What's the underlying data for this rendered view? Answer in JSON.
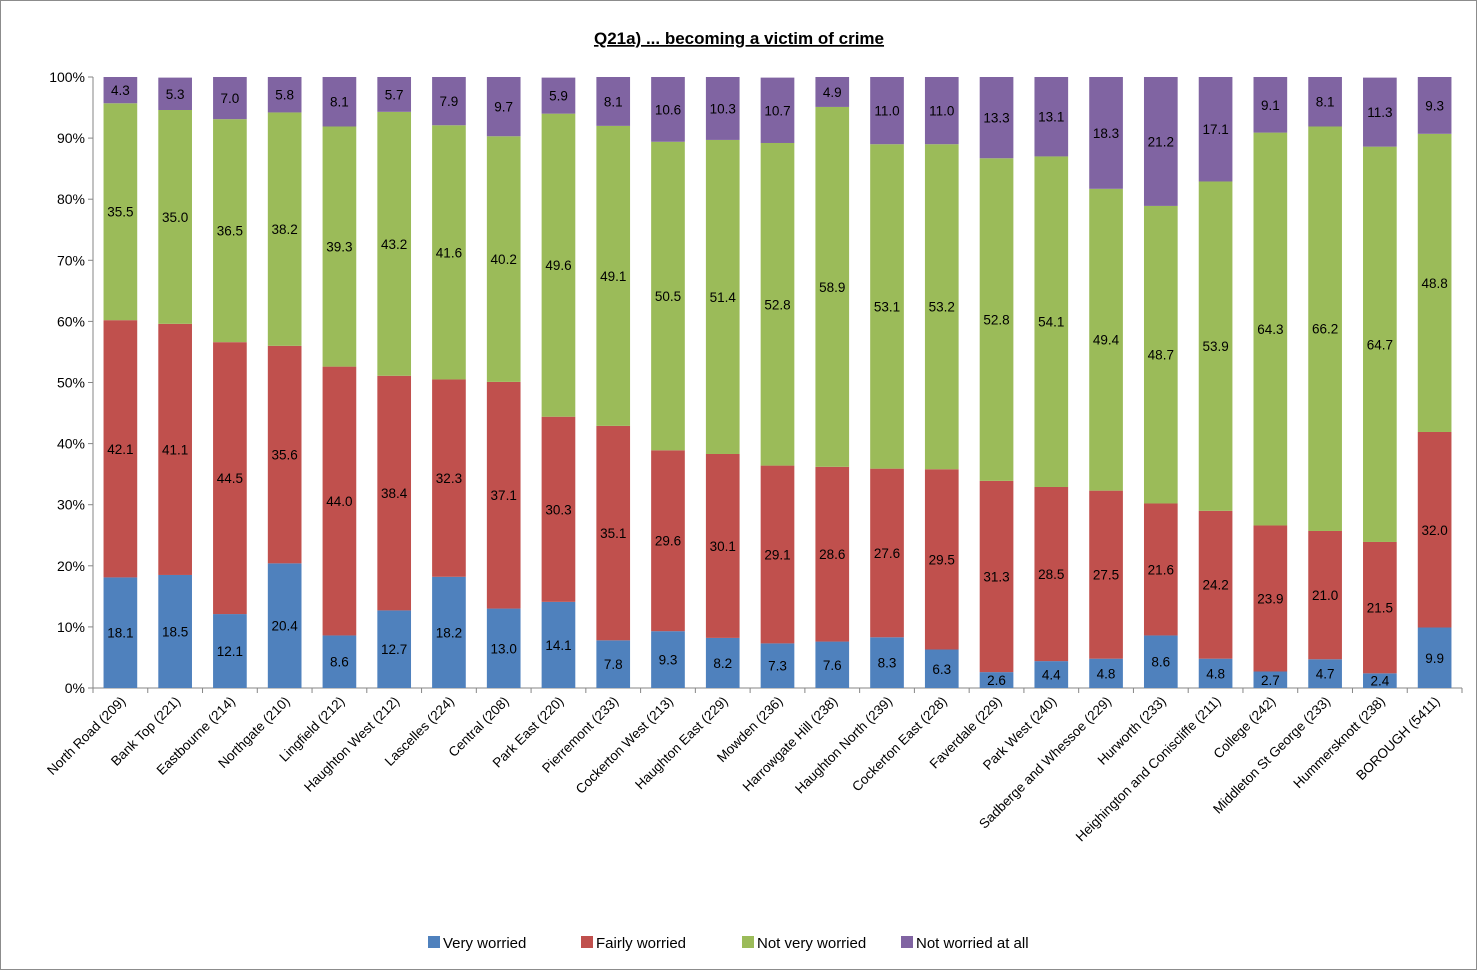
{
  "chart_data": {
    "type": "bar",
    "stacked": true,
    "percent": true,
    "title": "Q21a) ... becoming a victim of crime",
    "ylim": [
      0,
      100
    ],
    "yticks": [
      "0%",
      "10%",
      "20%",
      "30%",
      "40%",
      "50%",
      "60%",
      "70%",
      "80%",
      "90%",
      "100%"
    ],
    "legend_position": "bottom",
    "grid": false,
    "categories": [
      "North Road (209)",
      "Bank Top (221)",
      "Eastbourne (214)",
      "Northgate (210)",
      "Lingfield (212)",
      "Haughton West (212)",
      "Lascelles (224)",
      "Central (208)",
      "Park East (220)",
      "Pierremont (233)",
      "Cockerton West (213)",
      "Haughton East (229)",
      "Mowden (236)",
      "Harrowgate Hill (238)",
      "Haughton North (239)",
      "Cockerton East (228)",
      "Faverdale (229)",
      "Park West (240)",
      "Sadberge and Whessoe (229)",
      "Hurworth (233)",
      "Heighington and Coniscliffe (211)",
      "College (242)",
      "Middleton St George (233)",
      "Hummersknott (238)",
      "BOROUGH (5411)"
    ],
    "series": [
      {
        "name": "Very worried",
        "color": "#4f81bd",
        "values": [
          18.1,
          18.5,
          12.1,
          20.4,
          8.6,
          12.7,
          18.2,
          13.0,
          14.1,
          7.8,
          9.3,
          8.2,
          7.3,
          7.6,
          8.3,
          6.3,
          2.6,
          4.4,
          4.8,
          8.6,
          4.8,
          2.7,
          4.7,
          2.4,
          9.9
        ]
      },
      {
        "name": "Fairly worried",
        "color": "#c0504d",
        "values": [
          42.1,
          41.1,
          44.5,
          35.6,
          44.0,
          38.4,
          32.3,
          37.1,
          30.3,
          35.1,
          29.6,
          30.1,
          29.1,
          28.6,
          27.6,
          29.5,
          31.3,
          28.5,
          27.5,
          21.6,
          24.2,
          23.9,
          21.0,
          21.5,
          32.0
        ]
      },
      {
        "name": "Not very worried",
        "color": "#9bbb59",
        "values": [
          35.5,
          35.0,
          36.5,
          38.2,
          39.3,
          43.2,
          41.6,
          40.2,
          49.6,
          49.1,
          50.5,
          51.4,
          52.8,
          58.9,
          53.1,
          53.2,
          52.8,
          54.1,
          49.4,
          48.7,
          53.9,
          64.3,
          66.2,
          64.7,
          48.8
        ]
      },
      {
        "name": "Not worried at all",
        "color": "#8064a2",
        "values": [
          4.3,
          5.3,
          7.0,
          5.8,
          8.1,
          5.7,
          7.9,
          9.7,
          5.9,
          8.1,
          10.6,
          10.3,
          10.7,
          4.9,
          11.0,
          11.0,
          13.3,
          13.1,
          18.3,
          21.2,
          17.1,
          9.1,
          8.1,
          11.3,
          9.3
        ]
      }
    ]
  }
}
